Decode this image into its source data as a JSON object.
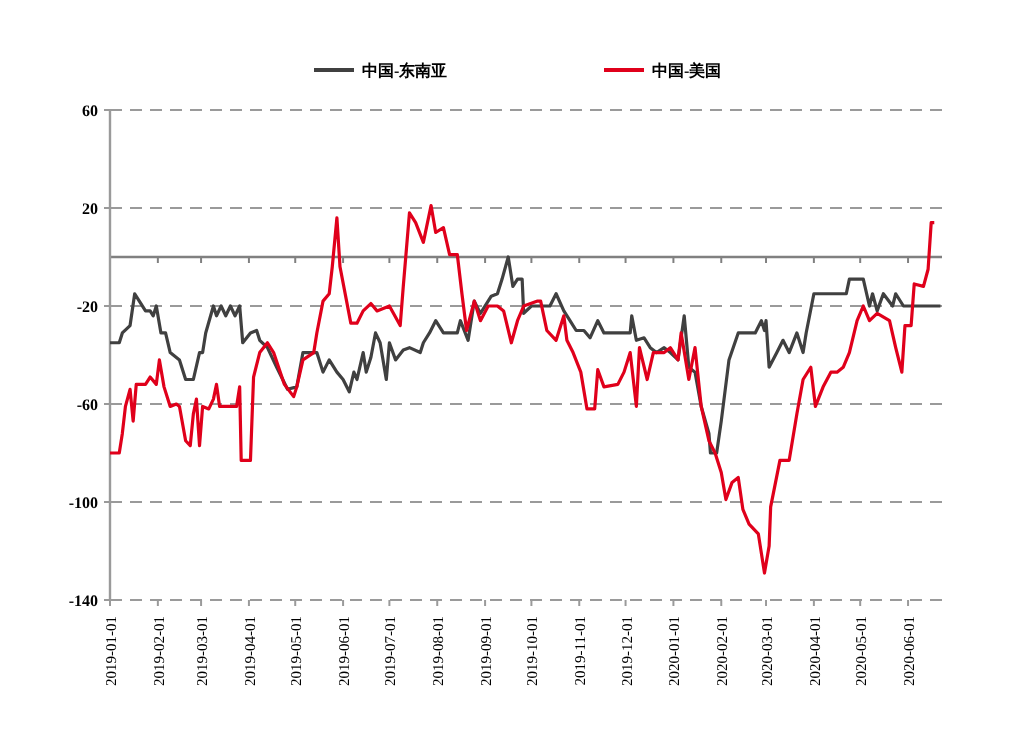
{
  "chart_data": {
    "type": "line",
    "legend": "top",
    "grid": "y",
    "xlim": [
      "2019-01-01",
      "2020-06-23"
    ],
    "ylim": [
      -140,
      60
    ],
    "yticks": [
      60,
      20,
      -20,
      -60,
      -100,
      -140
    ],
    "xticks": [
      "2019-01-01",
      "2019-02-01",
      "2019-03-01",
      "2019-04-01",
      "2019-05-01",
      "2019-06-01",
      "2019-07-01",
      "2019-08-01",
      "2019-09-01",
      "2019-10-01",
      "2019-11-01",
      "2019-12-01",
      "2020-01-01",
      "2020-02-01",
      "2020-03-01",
      "2020-04-01",
      "2020-05-01",
      "2020-06-01"
    ],
    "ref_lines": [
      {
        "axis": "y",
        "value": 0,
        "color": "#808080"
      }
    ],
    "series": [
      {
        "name": "中国-东南亚",
        "color": "#404040",
        "x": [
          "2019-01-01",
          "2019-01-07",
          "2019-01-09",
          "2019-01-14",
          "2019-01-17",
          "2019-01-20",
          "2019-01-24",
          "2019-01-27",
          "2019-01-29",
          "2019-01-31",
          "2019-02-03",
          "2019-02-06",
          "2019-02-09",
          "2019-02-15",
          "2019-02-19",
          "2019-02-24",
          "2019-02-28",
          "2019-03-02",
          "2019-03-04",
          "2019-03-09",
          "2019-03-11",
          "2019-03-14",
          "2019-03-17",
          "2019-03-20",
          "2019-03-23",
          "2019-03-26",
          "2019-03-28",
          "2019-04-02",
          "2019-04-06",
          "2019-04-08",
          "2019-04-13",
          "2019-04-19",
          "2019-04-26",
          "2019-05-02",
          "2019-05-06",
          "2019-05-15",
          "2019-05-19",
          "2019-05-23",
          "2019-05-28",
          "2019-06-01",
          "2019-06-05",
          "2019-06-08",
          "2019-06-10",
          "2019-06-14",
          "2019-06-16",
          "2019-06-19",
          "2019-06-22",
          "2019-06-25",
          "2019-06-29",
          "2019-07-01",
          "2019-07-05",
          "2019-07-10",
          "2019-07-14",
          "2019-07-21",
          "2019-07-23",
          "2019-07-27",
          "2019-07-31",
          "2019-08-05",
          "2019-08-14",
          "2019-08-16",
          "2019-08-21",
          "2019-08-25",
          "2019-08-29",
          "2019-09-05",
          "2019-09-09",
          "2019-09-12",
          "2019-09-16",
          "2019-09-19",
          "2019-09-22",
          "2019-09-25",
          "2019-09-26",
          "2019-10-01",
          "2019-10-13",
          "2019-10-17",
          "2019-10-22",
          "2019-10-26",
          "2019-10-30",
          "2019-11-04",
          "2019-11-08",
          "2019-11-13",
          "2019-11-17",
          "2019-12-04",
          "2019-12-05",
          "2019-12-08",
          "2019-12-13",
          "2019-12-17",
          "2019-12-21",
          "2019-12-26",
          "2019-12-30",
          "2020-01-04",
          "2020-01-08",
          "2020-01-11",
          "2020-01-15",
          "2020-01-19",
          "2020-01-24",
          "2020-01-25",
          "2020-01-29",
          "2020-02-01",
          "2020-02-06",
          "2020-02-12",
          "2020-02-23",
          "2020-02-27",
          "2020-02-29",
          "2020-03-01",
          "2020-03-03",
          "2020-03-08",
          "2020-03-12",
          "2020-03-16",
          "2020-03-21",
          "2020-03-25",
          "2020-03-27",
          "2020-04-01",
          "2020-04-22",
          "2020-04-24",
          "2020-05-03",
          "2020-05-07",
          "2020-05-09",
          "2020-05-12",
          "2020-05-16",
          "2020-05-22",
          "2020-05-24",
          "2020-05-29",
          "2020-06-22"
        ],
        "values": [
          -35,
          -35,
          -31,
          -28,
          -15,
          -18,
          -22,
          -22,
          -24,
          -20,
          -31,
          -31,
          -39,
          -42,
          -50,
          -50,
          -39,
          -39,
          -31,
          -20,
          -24,
          -20,
          -24,
          -20,
          -24,
          -20,
          -35,
          -31,
          -30,
          -34,
          -37,
          -45,
          -54,
          -53,
          -39,
          -39,
          -47,
          -42,
          -47,
          -50,
          -55,
          -47,
          -50,
          -39,
          -47,
          -41,
          -31,
          -35,
          -50,
          -35,
          -42,
          -38,
          -37,
          -39,
          -35,
          -31,
          -26,
          -31,
          -31,
          -26,
          -34,
          -18,
          -23,
          -16,
          -15,
          -9,
          0,
          -12,
          -9,
          -9,
          -23,
          -20,
          -20,
          -15,
          -22,
          -26,
          -30,
          -30,
          -33,
          -26,
          -31,
          -31,
          -24,
          -34,
          -33,
          -37,
          -39,
          -37,
          -39,
          -42,
          -24,
          -45,
          -47,
          -61,
          -72,
          -80,
          -80,
          -67,
          -42,
          -31,
          -31,
          -26,
          -30,
          -26,
          -45,
          -39,
          -34,
          -39,
          -31,
          -39,
          -31,
          -15,
          -15,
          -9,
          -9,
          -20,
          -15,
          -22,
          -15,
          -20,
          -15,
          -20,
          -20
        ]
      },
      {
        "name": "中国-美国",
        "color": "#e0001b",
        "x": [
          "2019-01-01",
          "2019-01-07",
          "2019-01-09",
          "2019-01-11",
          "2019-01-14",
          "2019-01-16",
          "2019-01-18",
          "2019-01-24",
          "2019-01-27",
          "2019-01-31",
          "2019-02-02",
          "2019-02-05",
          "2019-02-09",
          "2019-02-13",
          "2019-02-15",
          "2019-02-19",
          "2019-02-22",
          "2019-02-24",
          "2019-02-26",
          "2019-02-28",
          "2019-03-02",
          "2019-03-06",
          "2019-03-09",
          "2019-03-11",
          "2019-03-13",
          "2019-03-17",
          "2019-03-24",
          "2019-03-26",
          "2019-03-27",
          "2019-04-02",
          "2019-04-04",
          "2019-04-08",
          "2019-04-13",
          "2019-04-17",
          "2019-04-24",
          "2019-04-30",
          "2019-05-02",
          "2019-05-06",
          "2019-05-13",
          "2019-05-15",
          "2019-05-19",
          "2019-05-23",
          "2019-05-25",
          "2019-05-28",
          "2019-05-30",
          "2019-06-06",
          "2019-06-10",
          "2019-06-14",
          "2019-06-19",
          "2019-06-23",
          "2019-07-01",
          "2019-07-08",
          "2019-07-10",
          "2019-07-14",
          "2019-07-18",
          "2019-07-23",
          "2019-07-25",
          "2019-07-28",
          "2019-07-31",
          "2019-08-05",
          "2019-08-09",
          "2019-08-14",
          "2019-08-17",
          "2019-08-20",
          "2019-08-25",
          "2019-08-29",
          "2019-09-03",
          "2019-09-09",
          "2019-09-13",
          "2019-09-18",
          "2019-09-22",
          "2019-09-26",
          "2019-10-05",
          "2019-10-07",
          "2019-10-11",
          "2019-10-17",
          "2019-10-22",
          "2019-10-24",
          "2019-10-28",
          "2019-11-02",
          "2019-11-06",
          "2019-11-11",
          "2019-11-13",
          "2019-11-17",
          "2019-11-26",
          "2019-11-30",
          "2019-12-04",
          "2019-12-08",
          "2019-12-10",
          "2019-12-15",
          "2019-12-19",
          "2019-12-26",
          "2019-12-30",
          "2020-01-04",
          "2020-01-06",
          "2020-01-11",
          "2020-01-15",
          "2020-01-19",
          "2020-01-24",
          "2020-01-28",
          "2020-02-01",
          "2020-02-04",
          "2020-02-08",
          "2020-02-12",
          "2020-02-15",
          "2020-02-19",
          "2020-02-25",
          "2020-02-29",
          "2020-03-03",
          "2020-03-04",
          "2020-03-10",
          "2020-03-16",
          "2020-03-21",
          "2020-03-25",
          "2020-03-30",
          "2020-04-02",
          "2020-04-07",
          "2020-04-12",
          "2020-04-16",
          "2020-04-20",
          "2020-04-24",
          "2020-04-29",
          "2020-05-03",
          "2020-05-07",
          "2020-05-12",
          "2020-05-20",
          "2020-05-24",
          "2020-05-28",
          "2020-05-30",
          "2020-06-03",
          "2020-06-05",
          "2020-06-11",
          "2020-06-14",
          "2020-06-16",
          "2020-06-18"
        ],
        "values": [
          -80,
          -80,
          -72,
          -61,
          -54,
          -67,
          -52,
          -52,
          -49,
          -52,
          -42,
          -53,
          -61,
          -60,
          -61,
          -75,
          -77,
          -64,
          -58,
          -77,
          -61,
          -62,
          -58,
          -52,
          -61,
          -61,
          -61,
          -53,
          -83,
          -83,
          -49,
          -39,
          -35,
          -39,
          -52,
          -57,
          -53,
          -42,
          -39,
          -31,
          -18,
          -15,
          -4,
          16,
          -4,
          -27,
          -27,
          -22,
          -19,
          -22,
          -20,
          -28,
          -12,
          18,
          14,
          6,
          12,
          21,
          10,
          12,
          1,
          1,
          -15,
          -30,
          -18,
          -26,
          -20,
          -20,
          -22,
          -35,
          -26,
          -20,
          -18,
          -18,
          -30,
          -34,
          -24,
          -34,
          -39,
          -47,
          -62,
          -62,
          -46,
          -53,
          -52,
          -47,
          -39,
          -61,
          -37,
          -50,
          -39,
          -39,
          -37,
          -42,
          -31,
          -50,
          -37,
          -61,
          -75,
          -80,
          -88,
          -99,
          -92,
          -90,
          -103,
          -109,
          -113,
          -129,
          -118,
          -102,
          -83,
          -83,
          -64,
          -50,
          -45,
          -61,
          -53,
          -47,
          -47,
          -45,
          -39,
          -26,
          -20,
          -26,
          -23,
          -26,
          -37,
          -47,
          -28,
          -28,
          -11,
          -12,
          -5,
          14,
          14
        ]
      }
    ]
  }
}
